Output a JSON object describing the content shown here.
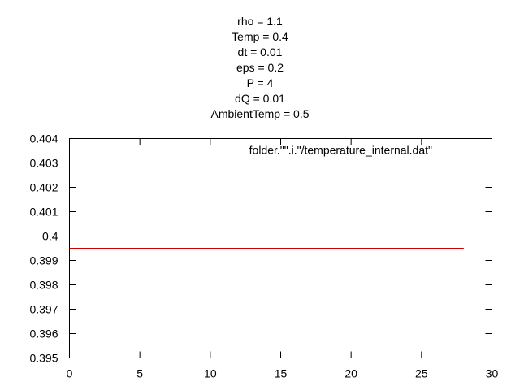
{
  "chart_data": {
    "type": "line",
    "title_lines": [
      "rho = 1.1",
      "Temp = 0.4",
      "dt = 0.01",
      "eps = 0.2",
      "P = 4",
      "dQ = 0.01",
      "AmbientTemp = 0.5"
    ],
    "xlabel": "",
    "ylabel": "",
    "xlim": [
      0,
      30
    ],
    "ylim": [
      0.395,
      0.404
    ],
    "x_ticks": [
      0,
      5,
      10,
      15,
      20,
      25,
      30
    ],
    "x_tick_labels": [
      "0",
      "5",
      "10",
      "15",
      "20",
      "25",
      "30"
    ],
    "y_ticks": [
      0.395,
      0.396,
      0.397,
      0.398,
      0.399,
      0.4,
      0.401,
      0.402,
      0.403,
      0.404
    ],
    "y_tick_labels": [
      "0.395",
      "0.396",
      "0.397",
      "0.398",
      "0.399",
      "0.4",
      "0.401",
      "0.402",
      "0.403",
      "0.404"
    ],
    "grid": false,
    "legend_position": "top-right",
    "series": [
      {
        "name": "folder.\"\".i.\"/temperature_internal.dat\"",
        "color": "#cc0000",
        "x": [
          0,
          28
        ],
        "y": [
          0.3995,
          0.3995
        ]
      }
    ]
  }
}
